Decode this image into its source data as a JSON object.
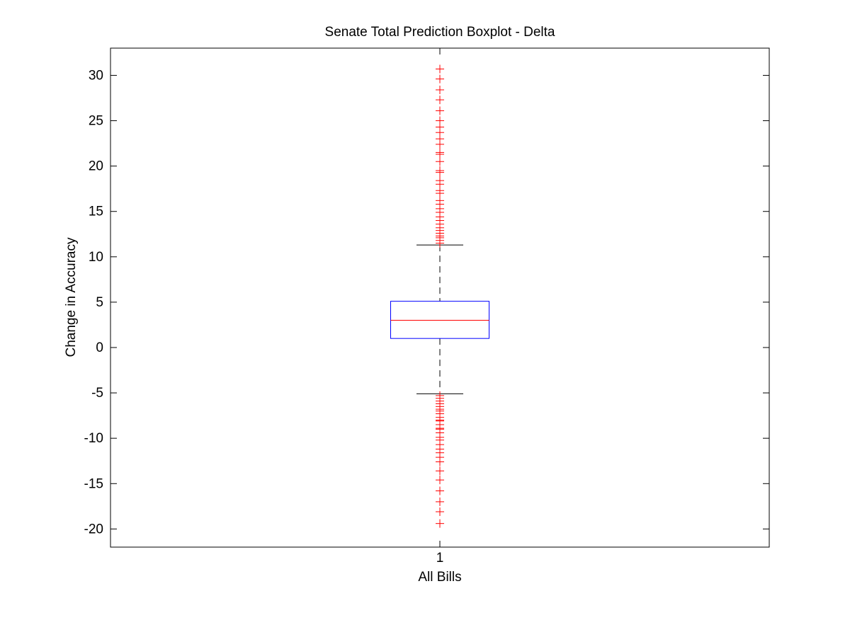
{
  "chart_data": {
    "type": "boxplot",
    "title": "Senate Total Prediction Boxplot - Delta",
    "xlabel": "All Bills",
    "ylabel": "Change in Accuracy",
    "x_tick_labels": [
      "1"
    ],
    "ylim": [
      -22,
      33
    ],
    "y_ticks": [
      -20,
      -15,
      -10,
      -5,
      0,
      5,
      10,
      15,
      20,
      25,
      30
    ],
    "grid": false,
    "boxes": [
      {
        "category": "1",
        "whisker_low": -5.1,
        "q1": 1.0,
        "median": 3.0,
        "q3": 5.1,
        "whisker_high": 11.3,
        "outliers": [
          30.7,
          29.6,
          28.4,
          27.3,
          26.1,
          25.0,
          24.3,
          23.7,
          23.0,
          22.4,
          21.5,
          21.3,
          20.5,
          19.5,
          19.3,
          18.4,
          18.0,
          17.3,
          17.0,
          16.2,
          15.8,
          15.3,
          14.9,
          14.4,
          14.0,
          13.6,
          13.2,
          12.9,
          12.6,
          12.3,
          12.1,
          11.8,
          11.5,
          -5.3,
          -5.6,
          -5.9,
          -6.2,
          -6.5,
          -6.8,
          -7.0,
          -7.3,
          -7.7,
          -8.0,
          -8.1,
          -8.5,
          -8.9,
          -9.0,
          -9.4,
          -9.9,
          -10.2,
          -10.7,
          -11.2,
          -11.6,
          -12.1,
          -12.6,
          -13.6,
          -14.6,
          -15.8,
          -17.0,
          -18.1,
          -19.4
        ]
      }
    ],
    "colors": {
      "box": "#0000ff",
      "median": "#ff0000",
      "whisker": "#000000",
      "outlier": "#ff0000",
      "axes": "#000000"
    }
  }
}
